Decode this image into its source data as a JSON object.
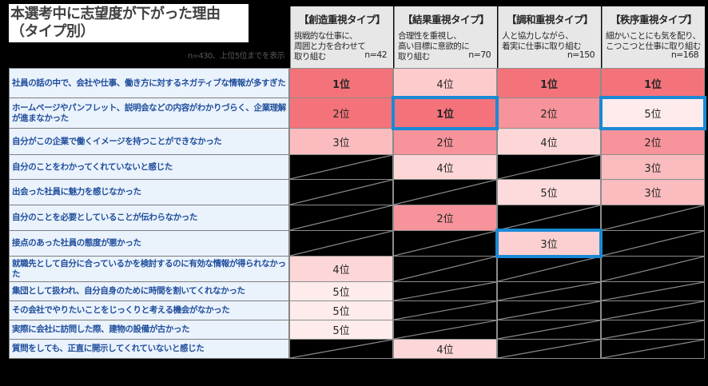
{
  "title": {
    "line1": "本選考中に志望度が下がった理由",
    "line2": "（タイプ別）"
  },
  "sample_note": "n=430、上位5位までを表示",
  "columns": [
    {
      "type": "【創造重視タイプ】",
      "desc1": "挑戦的な仕事に、",
      "desc2": "周囲と力を合わせて",
      "desc3": "取り組む",
      "n": "n=42"
    },
    {
      "type": "【結果重視タイプ】",
      "desc1": "合理性を重視し、",
      "desc2": "高い目標に意欲的に",
      "desc3": "取り組む",
      "n": "n=70"
    },
    {
      "type": "【調和重視タイプ】",
      "desc1": "人と協力しながら、",
      "desc2": "着実に仕事に取り組む",
      "desc3": "",
      "n": "n=150"
    },
    {
      "type": "【秩序重視タイプ】",
      "desc1": "細かいことにも気を配り、",
      "desc2": "こつこつと仕事に取り組む",
      "desc3": "",
      "n": "n=168"
    }
  ],
  "rows": [
    {
      "label": "社員の話の中で、会社や仕事、働き方に対するネガティブな情報が多すぎた",
      "ranks": [
        "1位",
        "4位",
        "1位",
        "1位"
      ]
    },
    {
      "label": "ホームページやパンフレット、説明会などの内容がわかりづらく、企業理解が進まなかった",
      "ranks": [
        "2位",
        "1位",
        "2位",
        "5位"
      ]
    },
    {
      "label": "自分がこの企業で働くイメージを持つことができなかった",
      "ranks": [
        "3位",
        "2位",
        "4位",
        "2位"
      ]
    },
    {
      "label": "自分のことをわかってくれていないと感じた",
      "ranks": [
        "",
        "4位",
        "",
        "3位"
      ]
    },
    {
      "label": "出会った社員に魅力を感じなかった",
      "ranks": [
        "",
        "",
        "5位",
        "3位"
      ]
    },
    {
      "label": "自分のことを必要としていることが伝わらなかった",
      "ranks": [
        "",
        "2位",
        "",
        ""
      ]
    },
    {
      "label": "接点のあった社員の態度が悪かった",
      "ranks": [
        "",
        "",
        "3位",
        ""
      ]
    },
    {
      "label": "就職先として自分に合っているかを検討するのに有効な情報が得られなかった",
      "ranks": [
        "4位",
        "",
        "",
        ""
      ]
    },
    {
      "label": "集団として扱われ、自分自身のために時間を割いてくれなかった",
      "ranks": [
        "5位",
        "",
        "",
        ""
      ]
    },
    {
      "label": "その会社でやりたいことをじっくりと考える機会がなかった",
      "ranks": [
        "5位",
        "",
        "",
        ""
      ]
    },
    {
      "label": "実際に会社に訪問した際、建物の設備が古かった",
      "ranks": [
        "5位",
        "",
        "",
        ""
      ]
    },
    {
      "label": "質問をしても、正直に開示してくれていないと感じた",
      "ranks": [
        "",
        "4位",
        "",
        ""
      ]
    }
  ],
  "highlights": [
    [
      1,
      1
    ],
    [
      1,
      3
    ],
    [
      6,
      2
    ]
  ],
  "rank_colors": {
    "1位": "#f4737a",
    "2位": "#f7939a",
    "3位": "#fbbcbf",
    "4位": "#fdd6d7",
    "5位": "#feecec"
  },
  "overrides": {
    "1,0": "#f4737a",
    "2,2": "#fdd6d7",
    "0,1": "#fecbcc",
    "4,2": "#fddadb",
    "6,2": "#fcd0d1"
  },
  "highlight_color": "#1a8ad4",
  "chart_data": {
    "type": "table",
    "title": "本選考中に志望度が下がった理由（タイプ別）",
    "note": "n=430、上位5位までを表示",
    "columns": [
      "創造重視タイプ (n=42)",
      "結果重視タイプ (n=70)",
      "調和重視タイプ (n=150)",
      "秩序重視タイプ (n=168)"
    ],
    "rows": [
      {
        "reason": "社員の話の中で、会社や仕事、働き方に対するネガティブな情報が多すぎた",
        "values": [
          1,
          4,
          1,
          1
        ]
      },
      {
        "reason": "ホームページやパンフレット、説明会などの内容がわかりづらく、企業理解が進まなかった",
        "values": [
          2,
          1,
          2,
          5
        ]
      },
      {
        "reason": "自分がこの企業で働くイメージを持つことができなかった",
        "values": [
          3,
          2,
          4,
          2
        ]
      },
      {
        "reason": "自分のことをわかってくれていないと感じた",
        "values": [
          null,
          4,
          null,
          3
        ]
      },
      {
        "reason": "出会った社員に魅力を感じなかった",
        "values": [
          null,
          null,
          5,
          3
        ]
      },
      {
        "reason": "自分のことを必要としていることが伝わらなかった",
        "values": [
          null,
          2,
          null,
          null
        ]
      },
      {
        "reason": "接点のあった社員の態度が悪かった",
        "values": [
          null,
          null,
          3,
          null
        ]
      },
      {
        "reason": "就職先として自分に合っているかを検討するのに有効な情報が得られなかった",
        "values": [
          4,
          null,
          null,
          null
        ]
      },
      {
        "reason": "集団として扱われ、自分自身のために時間を割いてくれなかった",
        "values": [
          5,
          null,
          null,
          null
        ]
      },
      {
        "reason": "その会社でやりたいことをじっくりと考える機会がなかった",
        "values": [
          5,
          null,
          null,
          null
        ]
      },
      {
        "reason": "実際に会社に訪問した際、建物の設備が古かった",
        "values": [
          5,
          null,
          null,
          null
        ]
      },
      {
        "reason": "質問をしても、正直に開示してくれていないと感じた",
        "values": [
          null,
          4,
          null,
          null
        ]
      }
    ],
    "highlighted_cells": [
      {
        "row": "ホームページやパンフレット、説明会などの内容がわかりづらく、企業理解が進まなかった",
        "column": "結果重視タイプ"
      },
      {
        "row": "ホームページやパンフレット、説明会などの内容がわかりづらく、企業理解が進まなかった",
        "column": "秩序重視タイプ"
      },
      {
        "row": "接点のあった社員の態度が悪かった",
        "column": "調和重視タイプ"
      }
    ]
  }
}
